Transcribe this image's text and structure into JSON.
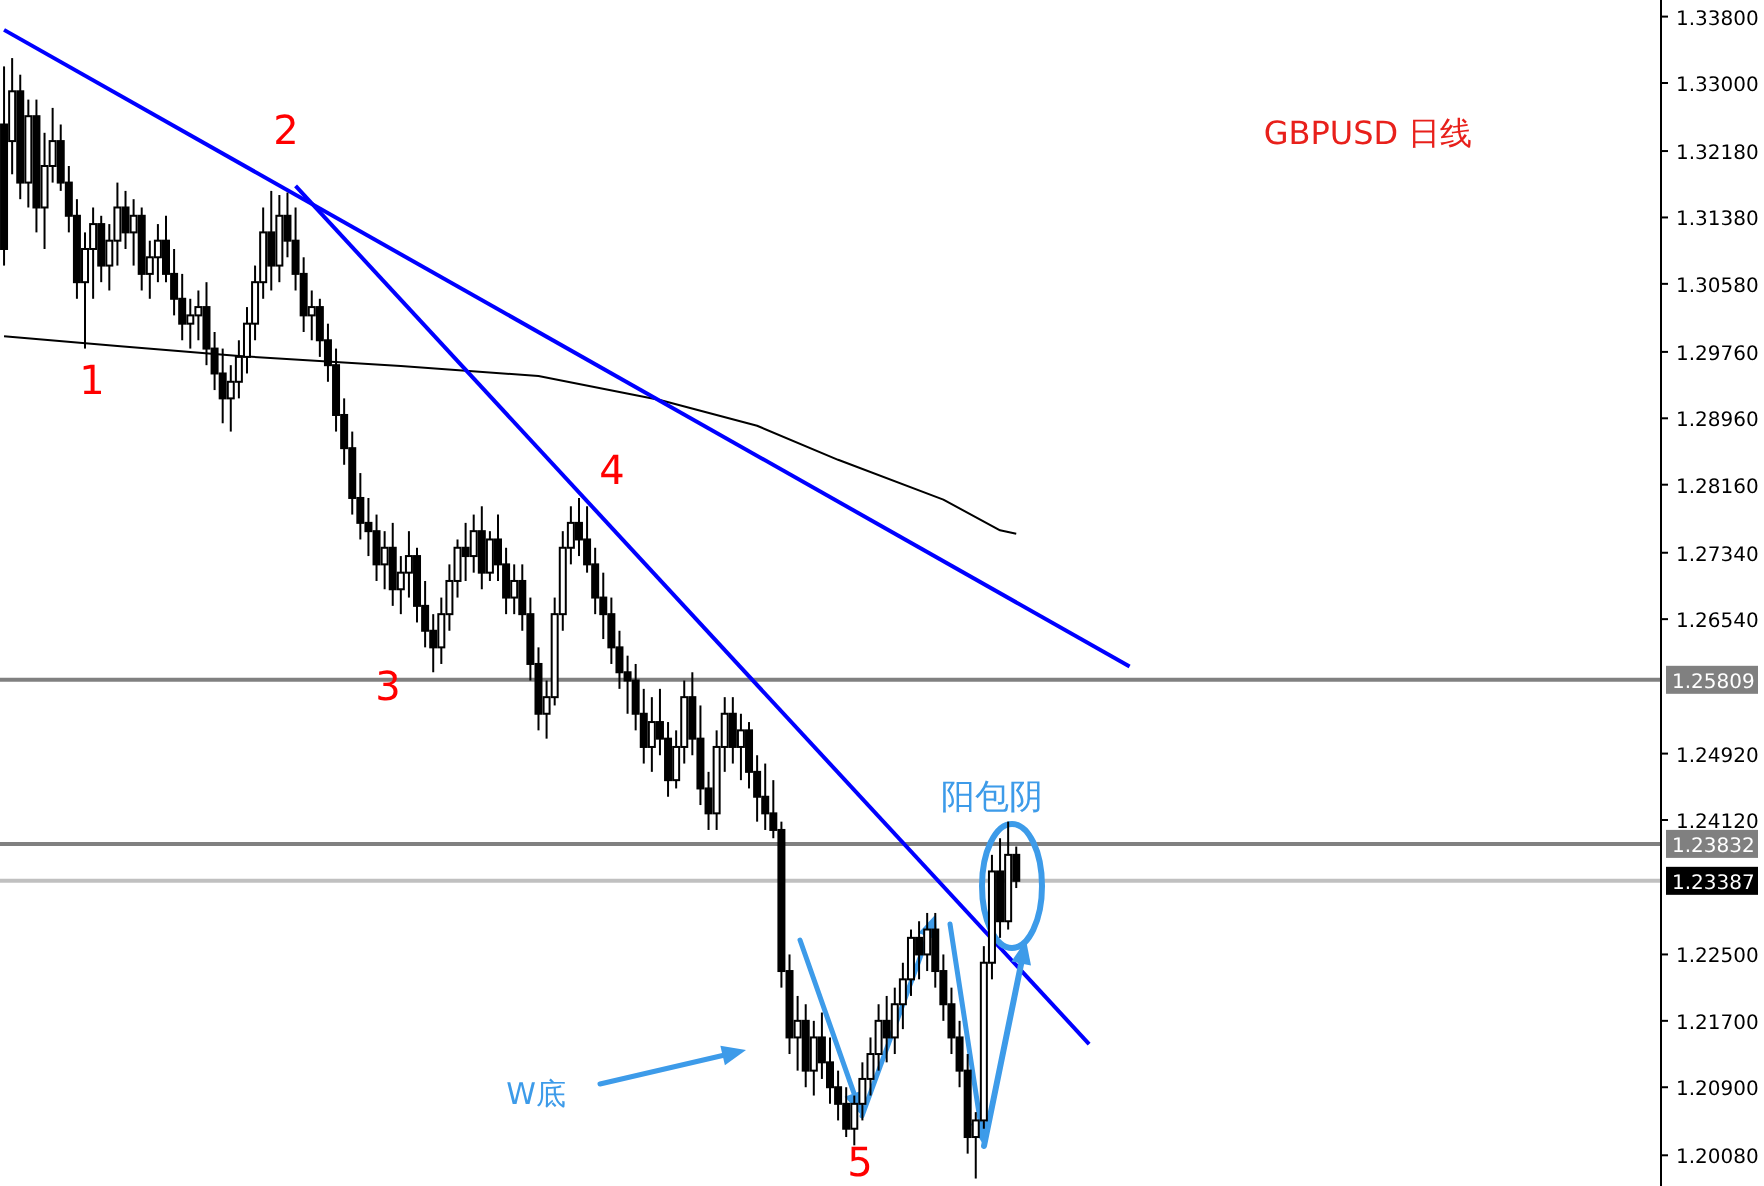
{
  "chart_data": {
    "type": "candlestick",
    "title": "GBPUSD 日线",
    "annotations": [
      "2",
      "1",
      "4",
      "3",
      "5",
      "W底",
      "阳包阴"
    ],
    "categories": [
      null,
      null,
      null,
      null,
      null,
      null,
      null,
      null,
      null,
      null,
      null,
      null,
      null,
      null,
      null,
      null,
      null,
      null,
      null,
      null,
      null,
      null,
      null,
      null,
      null,
      null,
      null,
      null,
      null,
      null,
      null,
      null,
      null,
      null,
      null,
      null,
      null,
      null,
      null,
      null,
      null,
      null,
      null,
      null,
      null,
      null,
      null,
      null,
      null,
      null,
      null,
      null,
      null,
      null,
      null,
      null,
      null,
      null,
      null,
      null,
      null,
      null,
      null,
      null,
      null,
      null,
      null,
      null,
      null,
      null,
      null,
      null,
      null,
      null,
      null,
      null,
      null,
      null,
      null,
      null,
      null,
      null,
      null,
      null,
      null,
      null,
      null,
      null,
      null,
      null,
      null,
      null,
      null,
      null,
      null,
      null,
      null,
      null,
      null,
      null,
      null,
      null,
      null,
      null,
      null,
      null,
      null,
      null,
      null,
      null,
      null,
      null,
      null,
      null,
      null,
      null,
      null,
      null,
      null,
      null,
      null,
      null,
      null,
      null,
      null,
      null,
      null,
      null,
      null,
      null,
      null,
      null,
      null,
      null,
      null,
      null,
      null,
      null,
      null,
      null,
      null,
      null,
      null,
      null,
      null,
      null,
      null,
      null,
      null,
      null,
      null,
      null,
      null,
      null,
      null,
      null,
      null,
      null,
      null,
      null,
      null,
      null,
      null,
      null,
      null,
      null,
      null,
      null,
      null,
      null,
      null,
      null,
      null,
      null,
      null,
      null,
      null,
      null,
      null,
      null,
      null,
      null,
      null,
      null,
      null,
      null,
      null,
      null,
      null,
      null,
      null,
      null,
      null,
      null,
      null,
      null,
      null,
      null,
      null,
      null,
      null,
      null,
      null,
      null,
      null
    ],
    "ohlc": [
      [
        1.325,
        1.332,
        1.308,
        1.31
      ],
      [
        1.323,
        1.333,
        1.319,
        1.329
      ],
      [
        1.329,
        1.331,
        1.316,
        1.318
      ],
      [
        1.318,
        1.328,
        1.315,
        1.326
      ],
      [
        1.326,
        1.328,
        1.312,
        1.315
      ],
      [
        1.315,
        1.324,
        1.31,
        1.32
      ],
      [
        1.32,
        1.327,
        1.318,
        1.323
      ],
      [
        1.323,
        1.325,
        1.317,
        1.318
      ],
      [
        1.318,
        1.32,
        1.312,
        1.314
      ],
      [
        1.314,
        1.316,
        1.304,
        1.306
      ],
      [
        1.306,
        1.312,
        1.298,
        1.31
      ],
      [
        1.31,
        1.315,
        1.304,
        1.313
      ],
      [
        1.313,
        1.314,
        1.306,
        1.308
      ],
      [
        1.308,
        1.313,
        1.305,
        1.311
      ],
      [
        1.311,
        1.318,
        1.308,
        1.315
      ],
      [
        1.315,
        1.317,
        1.31,
        1.312
      ],
      [
        1.312,
        1.316,
        1.308,
        1.314
      ],
      [
        1.314,
        1.315,
        1.305,
        1.307
      ],
      [
        1.307,
        1.311,
        1.304,
        1.309
      ],
      [
        1.309,
        1.313,
        1.306,
        1.311
      ],
      [
        1.311,
        1.314,
        1.306,
        1.307
      ],
      [
        1.307,
        1.31,
        1.302,
        1.304
      ],
      [
        1.304,
        1.307,
        1.299,
        1.301
      ],
      [
        1.301,
        1.304,
        1.298,
        1.302
      ],
      [
        1.302,
        1.305,
        1.299,
        1.303
      ],
      [
        1.303,
        1.306,
        1.296,
        1.298
      ],
      [
        1.298,
        1.3,
        1.293,
        1.295
      ],
      [
        1.295,
        1.298,
        1.289,
        1.292
      ],
      [
        1.292,
        1.296,
        1.288,
        1.294
      ],
      [
        1.294,
        1.299,
        1.292,
        1.297
      ],
      [
        1.297,
        1.303,
        1.295,
        1.301
      ],
      [
        1.301,
        1.308,
        1.299,
        1.306
      ],
      [
        1.306,
        1.315,
        1.304,
        1.312
      ],
      [
        1.312,
        1.317,
        1.305,
        1.308
      ],
      [
        1.308,
        1.3165,
        1.306,
        1.314
      ],
      [
        1.314,
        1.3168,
        1.309,
        1.311
      ],
      [
        1.311,
        1.315,
        1.305,
        1.307
      ],
      [
        1.307,
        1.309,
        1.3,
        1.302
      ],
      [
        1.302,
        1.305,
        1.299,
        1.303
      ],
      [
        1.303,
        1.304,
        1.297,
        1.299
      ],
      [
        1.299,
        1.301,
        1.294,
        1.296
      ],
      [
        1.296,
        1.298,
        1.288,
        1.29
      ],
      [
        1.29,
        1.292,
        1.284,
        1.286
      ],
      [
        1.286,
        1.288,
        1.278,
        1.28
      ],
      [
        1.28,
        1.283,
        1.275,
        1.277
      ],
      [
        1.277,
        1.28,
        1.273,
        1.276
      ],
      [
        1.276,
        1.278,
        1.27,
        1.272
      ],
      [
        1.272,
        1.276,
        1.269,
        1.274
      ],
      [
        1.274,
        1.277,
        1.267,
        1.269
      ],
      [
        1.269,
        1.273,
        1.266,
        1.271
      ],
      [
        1.271,
        1.276,
        1.268,
        1.273
      ],
      [
        1.273,
        1.274,
        1.265,
        1.267
      ],
      [
        1.267,
        1.27,
        1.262,
        1.264
      ],
      [
        1.264,
        1.266,
        1.259,
        1.262
      ],
      [
        1.262,
        1.268,
        1.26,
        1.266
      ],
      [
        1.266,
        1.272,
        1.264,
        1.27
      ],
      [
        1.27,
        1.275,
        1.268,
        1.274
      ],
      [
        1.274,
        1.277,
        1.27,
        1.273
      ],
      [
        1.273,
        1.278,
        1.271,
        1.276
      ],
      [
        1.276,
        1.279,
        1.269,
        1.271
      ],
      [
        1.271,
        1.276,
        1.27,
        1.275
      ],
      [
        1.275,
        1.278,
        1.27,
        1.272
      ],
      [
        1.272,
        1.274,
        1.266,
        1.268
      ],
      [
        1.268,
        1.272,
        1.266,
        1.27
      ],
      [
        1.27,
        1.272,
        1.264,
        1.266
      ],
      [
        1.266,
        1.268,
        1.258,
        1.26
      ],
      [
        1.26,
        1.262,
        1.252,
        1.254
      ],
      [
        1.254,
        1.258,
        1.251,
        1.256
      ],
      [
        1.256,
        1.268,
        1.255,
        1.266
      ],
      [
        1.266,
        1.276,
        1.264,
        1.274
      ],
      [
        1.274,
        1.279,
        1.272,
        1.277
      ],
      [
        1.277,
        1.28,
        1.273,
        1.275
      ],
      [
        1.275,
        1.279,
        1.271,
        1.272
      ],
      [
        1.272,
        1.274,
        1.266,
        1.268
      ],
      [
        1.268,
        1.271,
        1.263,
        1.266
      ],
      [
        1.266,
        1.268,
        1.26,
        1.262
      ],
      [
        1.262,
        1.264,
        1.257,
        1.259
      ],
      [
        1.259,
        1.261,
        1.254,
        1.258
      ],
      [
        1.258,
        1.26,
        1.252,
        1.254
      ],
      [
        1.254,
        1.257,
        1.248,
        1.25
      ],
      [
        1.25,
        1.256,
        1.247,
        1.253
      ],
      [
        1.253,
        1.257,
        1.249,
        1.251
      ],
      [
        1.251,
        1.253,
        1.244,
        1.246
      ],
      [
        1.246,
        1.252,
        1.245,
        1.25
      ],
      [
        1.25,
        1.258,
        1.248,
        1.256
      ],
      [
        1.256,
        1.259,
        1.249,
        1.251
      ],
      [
        1.251,
        1.255,
        1.243,
        1.245
      ],
      [
        1.245,
        1.247,
        1.24,
        1.242
      ],
      [
        1.242,
        1.252,
        1.24,
        1.25
      ],
      [
        1.25,
        1.256,
        1.247,
        1.254
      ],
      [
        1.254,
        1.256,
        1.248,
        1.25
      ],
      [
        1.25,
        1.254,
        1.246,
        1.252
      ],
      [
        1.252,
        1.253,
        1.245,
        1.247
      ],
      [
        1.247,
        1.249,
        1.241,
        1.244
      ],
      [
        1.244,
        1.248,
        1.24,
        1.242
      ],
      [
        1.242,
        1.246,
        1.239,
        1.24
      ],
      [
        1.24,
        1.241,
        1.221,
        1.223
      ],
      [
        1.223,
        1.225,
        1.213,
        1.215
      ],
      [
        1.215,
        1.22,
        1.211,
        1.217
      ],
      [
        1.217,
        1.219,
        1.209,
        1.211
      ],
      [
        1.211,
        1.217,
        1.208,
        1.215
      ],
      [
        1.215,
        1.218,
        1.21,
        1.212
      ],
      [
        1.212,
        1.215,
        1.207,
        1.209
      ],
      [
        1.209,
        1.211,
        1.205,
        1.207
      ],
      [
        1.207,
        1.209,
        1.203,
        1.204
      ],
      [
        1.204,
        1.208,
        1.202,
        1.207
      ],
      [
        1.207,
        1.212,
        1.205,
        1.21
      ],
      [
        1.21,
        1.215,
        1.208,
        1.213
      ],
      [
        1.213,
        1.219,
        1.211,
        1.217
      ],
      [
        1.217,
        1.22,
        1.212,
        1.215
      ],
      [
        1.215,
        1.221,
        1.213,
        1.219
      ],
      [
        1.219,
        1.224,
        1.216,
        1.222
      ],
      [
        1.222,
        1.228,
        1.22,
        1.227
      ],
      [
        1.227,
        1.229,
        1.222,
        1.225
      ],
      [
        1.225,
        1.23,
        1.223,
        1.228
      ],
      [
        1.228,
        1.23,
        1.221,
        1.223
      ],
      [
        1.223,
        1.225,
        1.217,
        1.219
      ],
      [
        1.219,
        1.221,
        1.213,
        1.215
      ],
      [
        1.215,
        1.217,
        1.209,
        1.211
      ],
      [
        1.211,
        1.213,
        1.201,
        1.203
      ],
      [
        1.203,
        1.206,
        1.198,
        1.205
      ],
      [
        1.205,
        1.226,
        1.204,
        1.224
      ],
      [
        1.224,
        1.237,
        1.222,
        1.235
      ],
      [
        1.235,
        1.239,
        1.227,
        1.229
      ],
      [
        1.229,
        1.241,
        1.228,
        1.237
      ],
      [
        1.237,
        1.238,
        1.233,
        1.23387
      ],
      null,
      null,
      null,
      null,
      null,
      null,
      null,
      null,
      null,
      null,
      null,
      null,
      null,
      null,
      null,
      null,
      null,
      null,
      null,
      null,
      null,
      null,
      null,
      null,
      null,
      null,
      null,
      null,
      null,
      null,
      null,
      null,
      null,
      null,
      null,
      null,
      null,
      null,
      null,
      null,
      null,
      null,
      null,
      null,
      null,
      null,
      null,
      null,
      null,
      null,
      null,
      null,
      null,
      null,
      null,
      null,
      null,
      null,
      null,
      null,
      null,
      null,
      null,
      null,
      null,
      null,
      null,
      null,
      null,
      null,
      null,
      null,
      null,
      null,
      null,
      null,
      null,
      null,
      null
    ],
    "series": [
      {
        "type": "line",
        "color": "#000000",
        "values": [
          1.2995,
          null,
          null,
          null,
          null,
          null,
          null,
          null,
          null,
          null,
          null,
          null,
          null,
          null,
          1.2983,
          null,
          null,
          null,
          null,
          null,
          null,
          null,
          null,
          null,
          null,
          null,
          null,
          null,
          null,
          1.2971,
          null,
          null,
          null,
          null,
          null,
          null,
          null,
          null,
          null,
          null,
          null,
          null,
          null,
          null,
          null,
          null,
          null,
          null,
          null,
          1.2959,
          null,
          null,
          null,
          null,
          null,
          null,
          null,
          null,
          null,
          null,
          null,
          null,
          null,
          null,
          null,
          null,
          1.2947,
          null,
          null,
          null,
          null,
          null,
          null,
          null,
          null,
          null,
          null,
          null,
          null,
          null,
          null,
          1.2918,
          null,
          null,
          null,
          null,
          null,
          null,
          null,
          null,
          null,
          null,
          null,
          1.2887,
          null,
          null,
          null,
          null,
          null,
          null,
          null,
          null,
          null,
          1.2846,
          null,
          null,
          null,
          null,
          null,
          null,
          null,
          null,
          null,
          null,
          null,
          null,
          1.2798,
          null,
          null,
          null,
          null,
          null,
          null,
          1.2761,
          null,
          1.2757,
          null,
          null,
          null,
          null,
          null,
          null,
          null,
          null,
          null,
          null,
          null,
          null,
          null,
          null,
          null,
          null,
          null,
          null,
          null,
          null,
          null,
          null,
          null,
          null,
          null,
          null,
          null,
          null,
          null,
          null,
          null,
          null,
          null,
          null,
          null,
          null,
          null,
          null,
          null,
          null,
          null,
          null,
          null,
          null,
          null,
          null,
          null,
          null,
          null,
          null,
          null,
          null,
          null,
          null,
          null,
          null,
          null,
          null,
          null,
          null,
          null,
          null,
          null,
          null,
          null,
          null,
          null,
          null,
          null,
          null,
          null,
          null,
          null,
          null,
          null,
          null,
          null,
          null,
          null
        ]
      },
      {
        "type": "line",
        "color": "#0000ff",
        "values": [
          1.3364,
          null,
          null,
          null,
          null,
          null,
          null,
          null,
          null,
          null,
          null,
          null,
          null,
          null,
          null,
          null,
          null,
          null,
          null,
          null,
          null,
          null,
          null,
          null,
          null,
          null,
          null,
          null,
          null,
          null,
          null,
          null,
          null,
          null,
          null,
          null,
          null,
          null,
          null,
          null,
          null,
          null,
          null,
          null,
          null,
          null,
          null,
          null,
          null,
          null,
          null,
          null,
          null,
          null,
          null,
          null,
          null,
          null,
          null,
          null,
          null,
          null,
          null,
          null,
          null,
          null,
          null,
          null,
          null,
          null,
          null,
          null,
          null,
          null,
          null,
          null,
          null,
          null,
          null,
          null,
          null,
          null,
          null,
          null,
          null,
          null,
          null,
          null,
          null,
          null,
          null,
          null,
          null,
          null,
          null,
          null,
          null,
          null,
          null,
          null,
          null,
          null,
          null,
          null,
          null,
          null,
          null,
          null,
          null,
          null,
          null,
          null,
          null,
          null,
          null,
          null,
          null,
          null,
          null,
          null,
          null,
          null,
          null,
          null,
          null,
          null,
          null,
          null,
          null,
          null,
          null,
          null,
          null,
          null,
          null,
          null,
          null,
          null,
          null,
          1.2597,
          null,
          null,
          null,
          null,
          null,
          null,
          null,
          null,
          null,
          null,
          null,
          null,
          null,
          null,
          null,
          null,
          null,
          null,
          null,
          null,
          null,
          null,
          null,
          null,
          null,
          null,
          null,
          null,
          null,
          null,
          null,
          null,
          null,
          null,
          null,
          null,
          null,
          null,
          null,
          null,
          null,
          null,
          null,
          null,
          null,
          null,
          null,
          null,
          null,
          null,
          null,
          null,
          null,
          null,
          null,
          null,
          null,
          null,
          null,
          null,
          null,
          null,
          null,
          null,
          null
        ]
      },
      {
        "type": "line",
        "color": "#0000ff",
        "values": [
          null,
          null,
          null,
          null,
          null,
          null,
          null,
          null,
          null,
          null,
          null,
          null,
          null,
          null,
          null,
          null,
          null,
          null,
          null,
          null,
          null,
          null,
          null,
          null,
          null,
          null,
          null,
          null,
          null,
          null,
          null,
          null,
          null,
          null,
          null,
          null,
          1.3176,
          null,
          null,
          null,
          null,
          null,
          null,
          null,
          null,
          null,
          null,
          null,
          null,
          null,
          null,
          null,
          null,
          null,
          null,
          null,
          null,
          null,
          null,
          null,
          null,
          null,
          null,
          null,
          null,
          null,
          null,
          null,
          null,
          null,
          null,
          null,
          null,
          null,
          null,
          null,
          null,
          null,
          null,
          null,
          null,
          null,
          null,
          null,
          null,
          null,
          null,
          null,
          null,
          null,
          null,
          null,
          null,
          null,
          null,
          null,
          null,
          null,
          null,
          null,
          null,
          null,
          null,
          null,
          null,
          null,
          null,
          null,
          null,
          null,
          null,
          null,
          null,
          null,
          null,
          null,
          null,
          null,
          null,
          null,
          null,
          null,
          null,
          null,
          null,
          null,
          null,
          null,
          null,
          null,
          null,
          null,
          null,
          null,
          1.2142,
          null,
          null,
          null,
          null,
          null,
          null,
          null,
          null,
          null,
          null,
          null,
          null,
          null,
          null,
          null,
          null,
          null,
          null,
          null,
          null,
          null,
          null,
          null,
          null,
          null,
          null,
          null,
          null,
          null,
          null,
          null,
          null,
          null,
          null,
          null,
          null,
          null,
          null,
          null,
          null,
          null,
          null,
          null,
          null,
          null,
          null,
          null,
          null,
          null,
          null,
          null,
          null,
          null,
          null,
          null,
          null,
          null,
          null,
          null,
          null,
          null,
          null,
          null,
          null,
          null,
          null,
          null,
          null,
          null,
          null
        ]
      }
    ],
    "ref_lines": [
      {
        "axis": "y",
        "value": 1.25809,
        "label": "1.25809",
        "color": "#808080"
      },
      {
        "axis": "y",
        "value": 1.23832,
        "label": "1.23832",
        "color": "#808080"
      },
      {
        "axis": "y",
        "value": 1.23387,
        "label": "1.23387",
        "color": "#c0c0c0"
      }
    ],
    "ylim": [
      1.1971,
      1.34
    ],
    "yticks": [
      {
        "value": 1.338,
        "label": "1.33800"
      },
      {
        "value": 1.33,
        "label": "1.33000"
      },
      {
        "value": 1.3218,
        "label": "1.32180"
      },
      {
        "value": 1.3138,
        "label": "1.31380"
      },
      {
        "value": 1.3058,
        "label": "1.30580"
      },
      {
        "value": 1.2976,
        "label": "1.29760"
      },
      {
        "value": 1.2896,
        "label": "1.28960"
      },
      {
        "value": 1.2816,
        "label": "1.28160"
      },
      {
        "value": 1.2734,
        "label": "1.27340"
      },
      {
        "value": 1.2654,
        "label": "1.26540"
      },
      {
        "value": 1.2492,
        "label": "1.24920"
      },
      {
        "value": 1.2412,
        "label": "1.24120"
      },
      {
        "value": 1.225,
        "label": "1.22500"
      },
      {
        "value": 1.217,
        "label": "1.21700"
      },
      {
        "value": 1.209,
        "label": "1.20900"
      },
      {
        "value": 1.2008,
        "label": "1.20080"
      }
    ],
    "tick_labels": "y",
    "grid": false
  }
}
